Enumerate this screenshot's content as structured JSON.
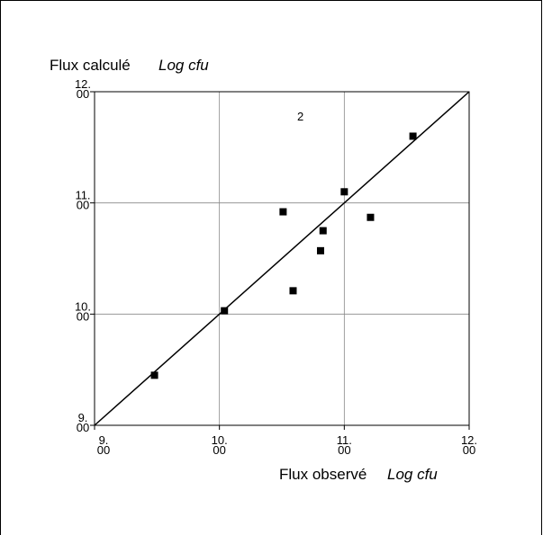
{
  "chart_data": {
    "type": "scatter",
    "y_label": "Flux calculé",
    "y_label_unit": "Log cfu",
    "x_label": "Flux observé",
    "x_label_unit": "Log cfu",
    "annotation": "2",
    "x": [
      9.48,
      10.04,
      10.51,
      10.59,
      10.81,
      10.83,
      11.0,
      11.21,
      11.55
    ],
    "values": [
      9.45,
      10.03,
      10.92,
      10.21,
      10.57,
      10.75,
      11.1,
      10.87,
      11.6
    ],
    "color": "#000000",
    "xlim": [
      9,
      12
    ],
    "ylim": [
      9,
      12
    ],
    "xticks": [
      {
        "value": 9,
        "label": "9.00"
      },
      {
        "value": 10,
        "label": "10.00"
      },
      {
        "value": 11,
        "label": "11.00"
      },
      {
        "value": 12,
        "label": "12.00"
      }
    ],
    "yticks": [
      {
        "value": 9,
        "label": "9.00"
      },
      {
        "value": 10,
        "label": "10.00"
      },
      {
        "value": 11,
        "label": "11.00"
      },
      {
        "value": 12,
        "label": "12.00"
      }
    ],
    "grid": true,
    "identity_line": true
  }
}
